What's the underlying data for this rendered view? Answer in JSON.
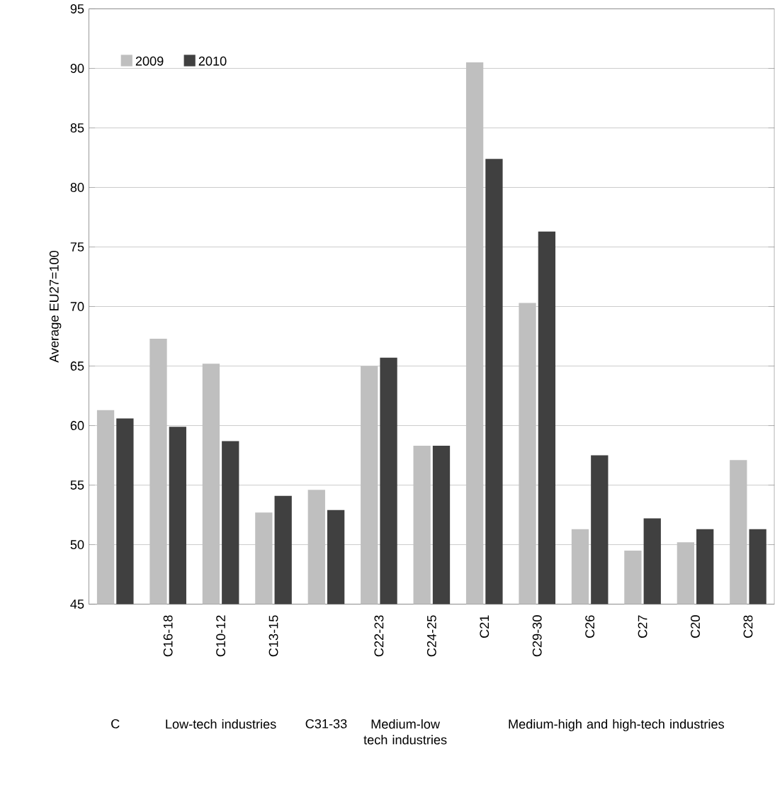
{
  "chart_data": {
    "type": "bar",
    "ylabel": "Average EU27=100",
    "categories": [
      null,
      "C16-18",
      "C10-12",
      "C13-15",
      null,
      "C22-23",
      "C24-25",
      "C21",
      "C29-30",
      "C26",
      "C27",
      "C20",
      "C28"
    ],
    "series": [
      {
        "name": "2009",
        "color": "#bfbfbf",
        "values": [
          61.3,
          67.3,
          65.2,
          52.7,
          54.6,
          65.0,
          58.3,
          90.5,
          70.3,
          51.3,
          49.5,
          50.2,
          57.1
        ]
      },
      {
        "name": "2010",
        "color": "#404040",
        "values": [
          60.6,
          59.9,
          58.7,
          54.1,
          52.9,
          65.7,
          58.3,
          82.4,
          76.3,
          57.5,
          52.2,
          51.3,
          51.3
        ]
      }
    ],
    "ylim": [
      45,
      95
    ],
    "yticks": [
      45,
      50,
      55,
      60,
      65,
      70,
      75,
      80,
      85,
      90,
      95
    ],
    "grid": "y",
    "legend": "top left",
    "annotations": [
      "C",
      "Low-tech industries",
      "C31-33",
      "Medium-low tech industries",
      "Medium-high and high-tech industries"
    ]
  }
}
